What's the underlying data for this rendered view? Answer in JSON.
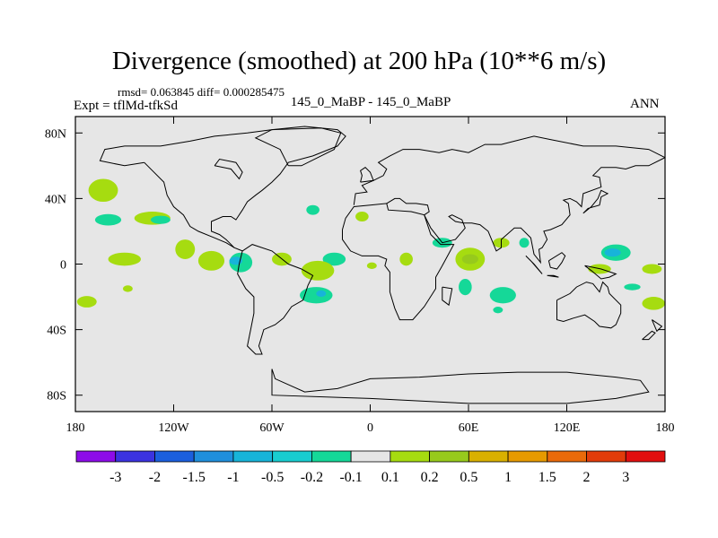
{
  "title": "Divergence (smoothed) at 200 hPa (10**6 m/s)",
  "stats": "rmsd= 0.063845 diff= 0.000285475",
  "experiment": "Expt = tflMd-tfkSd",
  "cases": "145_0_MaBP - 145_0_MaBP",
  "season": "ANN",
  "chart_data": {
    "type": "heatmap",
    "map_projection": "cylindrical equidistant",
    "title": "Divergence (smoothed) at 200 hPa (10**6 m/s)",
    "xlabel": "",
    "ylabel": "",
    "xlim": [
      -180,
      180
    ],
    "ylim": [
      -90,
      90
    ],
    "x_ticks": [
      {
        "value": -180,
        "label": "180"
      },
      {
        "value": -120,
        "label": "120W"
      },
      {
        "value": -60,
        "label": "60W"
      },
      {
        "value": 0,
        "label": "0"
      },
      {
        "value": 60,
        "label": "60E"
      },
      {
        "value": 120,
        "label": "120E"
      },
      {
        "value": 180,
        "label": "180"
      }
    ],
    "y_ticks": [
      {
        "value": 80,
        "label": "80N"
      },
      {
        "value": 40,
        "label": "40N"
      },
      {
        "value": 0,
        "label": "0"
      },
      {
        "value": -40,
        "label": "40S"
      },
      {
        "value": -80,
        "label": "80S"
      }
    ],
    "background_color": "#e6e6e6",
    "colorbar": {
      "colors": [
        "#8d0ce8",
        "#3b33e0",
        "#1b5fde",
        "#1f8fdc",
        "#17b4d9",
        "#18cdd0",
        "#15d898",
        "#e6e6e6",
        "#a6dc10",
        "#97ca1c",
        "#d9b000",
        "#e79a00",
        "#ea6a0a",
        "#e23c0a",
        "#e20f0f"
      ],
      "labels": [
        "-3",
        "-2",
        "-1.5",
        "-1",
        "-0.5",
        "-0.2",
        "-0.1",
        "0.1",
        "0.2",
        "0.5",
        "1",
        "1.5",
        "2",
        "3"
      ]
    },
    "anomaly_regions": [
      {
        "lon": -163,
        "lat": 45,
        "rx": 9,
        "ry": 7,
        "value": 0.3,
        "color": "#a6dc10"
      },
      {
        "lon": -160,
        "lat": 27,
        "rx": 8,
        "ry": 3.5,
        "value": -0.15,
        "color": "#15d898"
      },
      {
        "lon": -150,
        "lat": 3,
        "rx": 10,
        "ry": 4,
        "value": 0.3,
        "color": "#a6dc10"
      },
      {
        "lon": -133,
        "lat": 28,
        "rx": 11,
        "ry": 4,
        "value": 0.25,
        "color": "#a6dc10"
      },
      {
        "lon": -128,
        "lat": 27,
        "rx": 6,
        "ry": 2.5,
        "value": -0.15,
        "color": "#15d898"
      },
      {
        "lon": -113,
        "lat": 9,
        "rx": 6,
        "ry": 6,
        "value": 0.25,
        "color": "#a6dc10"
      },
      {
        "lon": -97,
        "lat": 2,
        "rx": 8,
        "ry": 6,
        "value": 0.3,
        "color": "#a6dc10"
      },
      {
        "lon": -79,
        "lat": 1,
        "rx": 7,
        "ry": 6,
        "value": -0.15,
        "color": "#15d898"
      },
      {
        "lon": -82,
        "lat": 2,
        "rx": 4,
        "ry": 2.5,
        "value": -0.6,
        "color": "#17b4d9"
      },
      {
        "lon": -173,
        "lat": -23,
        "rx": 6,
        "ry": 3.5,
        "value": 0.25,
        "color": "#a6dc10"
      },
      {
        "lon": -54,
        "lat": 3,
        "rx": 6,
        "ry": 4,
        "value": 0.25,
        "color": "#a6dc10"
      },
      {
        "lon": -35,
        "lat": 33,
        "rx": 4,
        "ry": 3,
        "value": -0.15,
        "color": "#15d898"
      },
      {
        "lon": -5,
        "lat": 29,
        "rx": 4,
        "ry": 3,
        "value": 0.25,
        "color": "#a6dc10"
      },
      {
        "lon": -22,
        "lat": 3,
        "rx": 7,
        "ry": 4,
        "value": -0.15,
        "color": "#15d898"
      },
      {
        "lon": -32,
        "lat": -4,
        "rx": 10,
        "ry": 6,
        "value": 0.3,
        "color": "#a6dc10"
      },
      {
        "lon": -33,
        "lat": -19,
        "rx": 10,
        "ry": 5,
        "value": -0.15,
        "color": "#15d898"
      },
      {
        "lon": -30,
        "lat": -18,
        "rx": 3,
        "ry": 2,
        "value": -0.6,
        "color": "#17b4d9"
      },
      {
        "lon": 1,
        "lat": -1,
        "rx": 3,
        "ry": 2,
        "value": 0.25,
        "color": "#a6dc10"
      },
      {
        "lon": 22,
        "lat": 3,
        "rx": 4,
        "ry": 4,
        "value": 0.25,
        "color": "#a6dc10"
      },
      {
        "lon": 44,
        "lat": 13,
        "rx": 6,
        "ry": 3,
        "value": -0.15,
        "color": "#15d898"
      },
      {
        "lon": 61,
        "lat": 3,
        "rx": 9,
        "ry": 7,
        "value": 0.4,
        "color": "#a6dc10"
      },
      {
        "lon": 61,
        "lat": 3,
        "rx": 5,
        "ry": 3,
        "value": 0.7,
        "color": "#97ca1c"
      },
      {
        "lon": 80,
        "lat": 13,
        "rx": 5,
        "ry": 3,
        "value": 0.25,
        "color": "#a6dc10"
      },
      {
        "lon": 94,
        "lat": 13,
        "rx": 3,
        "ry": 3,
        "value": -0.15,
        "color": "#15d898"
      },
      {
        "lon": 58,
        "lat": -14,
        "rx": 4,
        "ry": 5,
        "value": -0.15,
        "color": "#15d898"
      },
      {
        "lon": 81,
        "lat": -19,
        "rx": 8,
        "ry": 5,
        "value": -0.15,
        "color": "#15d898"
      },
      {
        "lon": 78,
        "lat": -28,
        "rx": 3,
        "ry": 2,
        "value": -0.15,
        "color": "#15d898"
      },
      {
        "lon": 150,
        "lat": 7,
        "rx": 9,
        "ry": 5,
        "value": -0.15,
        "color": "#15d898"
      },
      {
        "lon": 148,
        "lat": 7,
        "rx": 5,
        "ry": 2.5,
        "value": -0.6,
        "color": "#17b4d9"
      },
      {
        "lon": 140,
        "lat": -3,
        "rx": 7,
        "ry": 3,
        "value": 0.25,
        "color": "#a6dc10"
      },
      {
        "lon": 160,
        "lat": -14,
        "rx": 5,
        "ry": 2,
        "value": -0.15,
        "color": "#15d898"
      },
      {
        "lon": 172,
        "lat": -3,
        "rx": 6,
        "ry": 3,
        "value": 0.25,
        "color": "#a6dc10"
      },
      {
        "lon": 173,
        "lat": -24,
        "rx": 7,
        "ry": 4,
        "value": 0.25,
        "color": "#a6dc10"
      },
      {
        "lon": -148,
        "lat": -15,
        "rx": 3,
        "ry": 2,
        "value": 0.25,
        "color": "#a6dc10"
      }
    ]
  }
}
